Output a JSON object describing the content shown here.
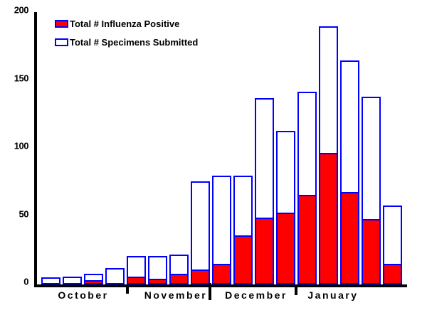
{
  "chart_data": {
    "type": "bar",
    "title": "",
    "legend": [
      {
        "label": "Total # Influenza Positive",
        "swatch_fill": "#ff0000",
        "swatch_border": "#0000ff"
      },
      {
        "label": "Total # Specimens Submitted",
        "swatch_fill": "#ffffff",
        "swatch_border": "#0000ff"
      }
    ],
    "legend_position": "top-left",
    "grid": false,
    "ylim": [
      0,
      200
    ],
    "yticks": [
      0,
      50,
      100,
      150,
      200
    ],
    "xlabel": "",
    "ylabel": "",
    "months": [
      {
        "label": "October",
        "weeks": 4
      },
      {
        "label": "November",
        "weeks": 4
      },
      {
        "label": "December",
        "weeks": 4
      },
      {
        "label": "January",
        "weeks": 5
      }
    ],
    "series": [
      {
        "name": "Total # Specimens Submitted",
        "style": "white fill, blue outline",
        "values": [
          5,
          6,
          8,
          12,
          21,
          21,
          22,
          76,
          80,
          80,
          137,
          113,
          142,
          190,
          165,
          138,
          58
        ]
      },
      {
        "name": "Total # Influenza Positive",
        "style": "red fill, blue outline",
        "values": [
          0,
          0,
          3,
          0,
          6,
          4,
          8,
          11,
          15,
          36,
          49,
          53,
          66,
          97,
          68,
          48,
          15
        ]
      }
    ],
    "colors": {
      "positive_fill": "#ff0000",
      "specimens_fill": "#ffffff",
      "bar_border": "#0000ff",
      "axis": "#000000",
      "text": "#000000",
      "background": "#ffffff"
    }
  }
}
